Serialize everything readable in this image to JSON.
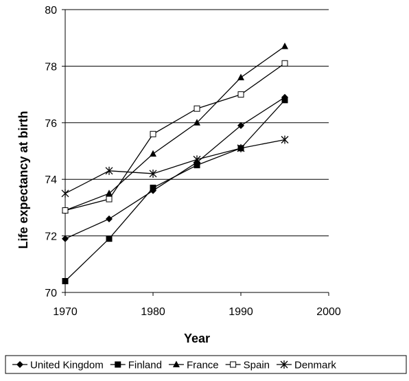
{
  "chart_data": {
    "type": "line",
    "title": "",
    "xlabel": "Year",
    "ylabel": "Life expectancy at birth",
    "xlim": [
      1970,
      2000
    ],
    "ylim": [
      70,
      80
    ],
    "xticks": [
      1970,
      1980,
      1990,
      2000
    ],
    "yticks": [
      70,
      72,
      74,
      76,
      78,
      80
    ],
    "grid": "horizontal",
    "legend_position": "bottom",
    "x": [
      1970,
      1975,
      1980,
      1985,
      1990,
      1995
    ],
    "series": [
      {
        "name": "United Kingdom",
        "marker": "diamond",
        "values": [
          71.9,
          72.6,
          73.6,
          74.6,
          75.9,
          76.9
        ]
      },
      {
        "name": "Finland",
        "marker": "square",
        "values": [
          70.4,
          71.9,
          73.7,
          74.5,
          75.1,
          76.8
        ]
      },
      {
        "name": "France",
        "marker": "triangle",
        "values": [
          72.9,
          73.5,
          74.9,
          76.0,
          77.6,
          78.7
        ]
      },
      {
        "name": "Spain",
        "marker": "open-square",
        "values": [
          72.9,
          73.3,
          75.6,
          76.5,
          77.0,
          78.1
        ]
      },
      {
        "name": "Denmark",
        "marker": "asterisk",
        "values": [
          73.5,
          74.3,
          74.2,
          74.7,
          75.1,
          75.4
        ]
      }
    ]
  }
}
